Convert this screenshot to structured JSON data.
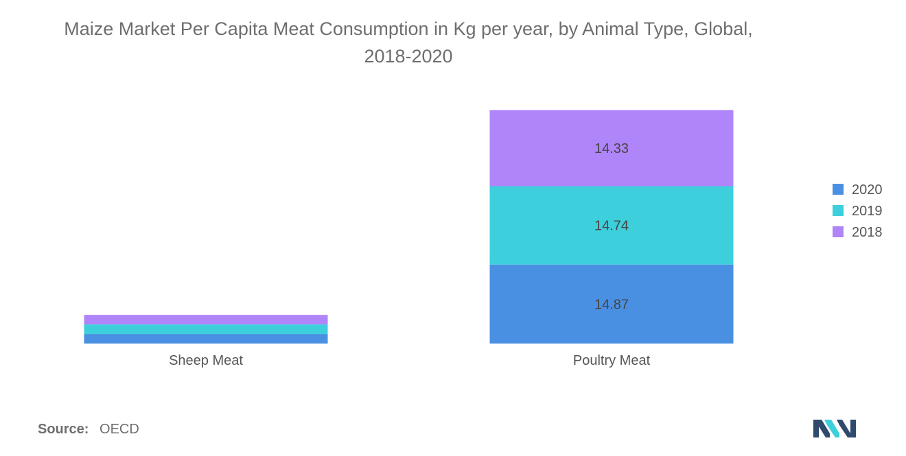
{
  "source": {
    "label": "Source:",
    "value": "OECD"
  },
  "chart_data": {
    "type": "bar",
    "stacked": true,
    "title": "Maize Market Per Capita Meat Consumption in Kg per year, by Animal Type, Global, 2018-2020",
    "title_lines": [
      "Maize Market Per Capita Meat Consumption in Kg per year, by Animal Type, Global,",
      "2018-2020"
    ],
    "xlabel": "",
    "ylabel": "",
    "categories": [
      "Sheep Meat",
      "Poultry Meat"
    ],
    "series": [
      {
        "name": "2020",
        "color": "#4a90e2",
        "values": [
          1.8,
          14.87
        ],
        "labels": [
          "",
          "14.87"
        ]
      },
      {
        "name": "2019",
        "color": "#3ecfdc",
        "values": [
          1.8,
          14.74
        ],
        "labels": [
          "",
          "14.74"
        ]
      },
      {
        "name": "2018",
        "color": "#b085f9",
        "values": [
          1.8,
          14.33
        ],
        "labels": [
          "",
          "14.33"
        ]
      }
    ],
    "ylim": [
      0,
      44
    ],
    "grid": false,
    "legend": "right"
  }
}
